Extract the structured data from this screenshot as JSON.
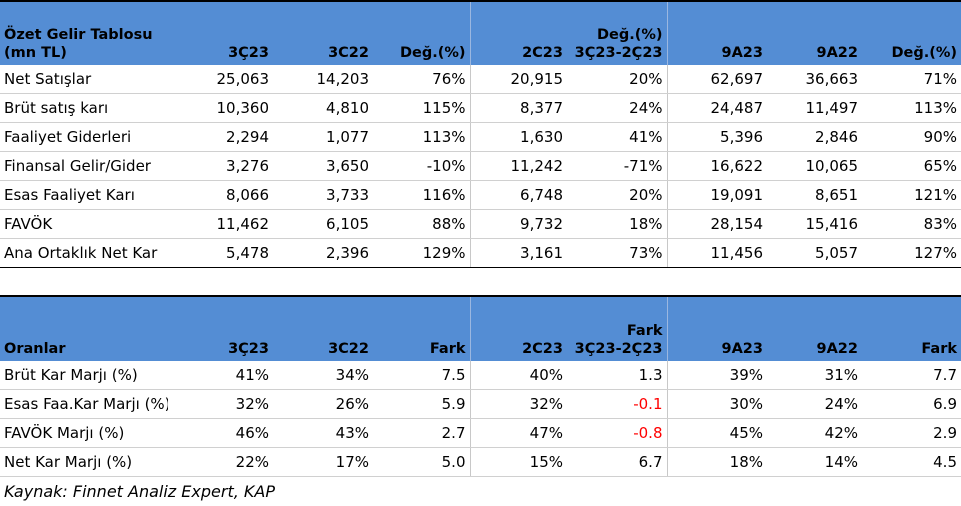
{
  "table1": {
    "headers": [
      "Özet Gelir Tablosu\n(mn TL)",
      "3Ç23",
      "3C22",
      "Değ.(%)",
      "2C23",
      "Değ.(%)\n3Ç23-2Ç23",
      "9A23",
      "9A22",
      "Değ.(%)"
    ],
    "rows": [
      [
        "Net Satışlar",
        "25,063",
        "14,203",
        "76%",
        "20,915",
        "20%",
        "62,697",
        "36,663",
        "71%"
      ],
      [
        "Brüt satış karı",
        "10,360",
        "4,810",
        "115%",
        "8,377",
        "24%",
        "24,487",
        "11,497",
        "113%"
      ],
      [
        "Faaliyet Giderleri",
        "2,294",
        "1,077",
        "113%",
        "1,630",
        "41%",
        "5,396",
        "2,846",
        "90%"
      ],
      [
        "Finansal Gelir/Gider",
        "3,276",
        "3,650",
        "-10%",
        "11,242",
        "-71%",
        "16,622",
        "10,065",
        "65%"
      ],
      [
        "Esas Faaliyet Karı",
        "8,066",
        "3,733",
        "116%",
        "6,748",
        "20%",
        "19,091",
        "8,651",
        "121%"
      ],
      [
        "FAVÖK",
        "11,462",
        "6,105",
        "88%",
        "9,732",
        "18%",
        "28,154",
        "15,416",
        "83%"
      ],
      [
        "Ana Ortaklık Net Kar",
        "5,478",
        "2,396",
        "129%",
        "3,161",
        "73%",
        "11,456",
        "5,057",
        "127%"
      ]
    ]
  },
  "table2": {
    "headers": [
      "Oranlar",
      "3Ç23",
      "3C22",
      "Fark",
      "2C23",
      "Fark\n3Ç23-2Ç23",
      "9A23",
      "9A22",
      "Fark"
    ],
    "rows": [
      [
        "Brüt Kar Marjı (%)",
        "41%",
        "34%",
        "7.5",
        "40%",
        "1.3",
        "39%",
        "31%",
        "7.7"
      ],
      [
        "Esas Faa.Kar Marjı (%)",
        "32%",
        "26%",
        "5.9",
        "32%",
        "-0.1",
        "30%",
        "24%",
        "6.9"
      ],
      [
        "FAVÖK Marjı (%)",
        "46%",
        "43%",
        "2.7",
        "47%",
        "-0.8",
        "45%",
        "42%",
        "2.9"
      ],
      [
        "Net Kar Marjı (%)",
        "22%",
        "17%",
        "5.0",
        "15%",
        "6.7",
        "18%",
        "14%",
        "4.5"
      ]
    ]
  },
  "colors": {
    "header_bg": "#548dd4",
    "negative": "#ff0000"
  },
  "source": "Kaynak: Finnet Analiz Expert, KAP"
}
